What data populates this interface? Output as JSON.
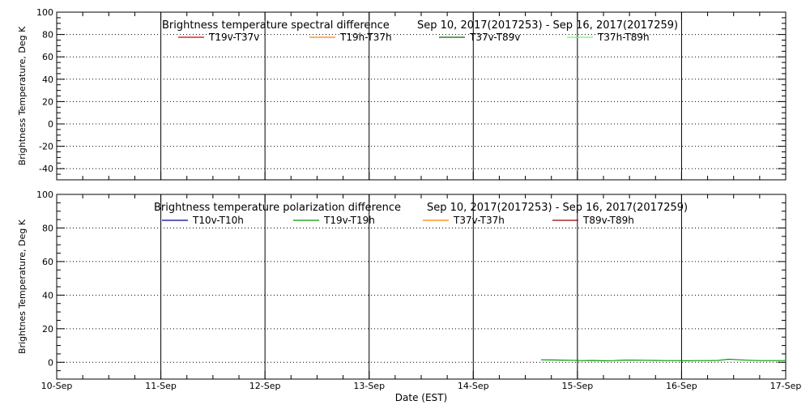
{
  "chart_data": [
    {
      "type": "line",
      "title": "Brightness temperature spectral difference",
      "date_range": "Sep 10, 2017(2017253) - Sep 16, 2017(2017259)",
      "ylabel": "Brightness Temperature, Deg K",
      "ylim": [
        -50,
        100
      ],
      "yticks": [
        -40,
        -20,
        0,
        20,
        40,
        60,
        80,
        100
      ],
      "xlim": [
        0,
        7
      ],
      "grid": true,
      "legend_position": "top",
      "series": [
        {
          "name": "T19v-T37v",
          "color": "#cc0000",
          "values": []
        },
        {
          "name": "T19h-T37h",
          "color": "#ff8000",
          "values": []
        },
        {
          "name": "T37v-T89v",
          "color": "#006600",
          "values": []
        },
        {
          "name": "T37h-T89h",
          "color": "#66ff66",
          "values": []
        }
      ]
    },
    {
      "type": "line",
      "title": "Brightness temperature polarization difference",
      "date_range": "Sep 10, 2017(2017253) - Sep 16, 2017(2017259)",
      "ylabel": "Brightnes Temperature, Deg K",
      "xlabel": "Date (EST)",
      "ylim": [
        -10,
        100
      ],
      "yticks": [
        0,
        20,
        40,
        60,
        80,
        100
      ],
      "xlim": [
        0,
        7
      ],
      "grid": true,
      "legend_position": "top",
      "series": [
        {
          "name": "T10v-T10h",
          "color": "#000099",
          "values": []
        },
        {
          "name": "T19v-T19h",
          "color": "#009900",
          "x": [
            4.65,
            4.75,
            4.85,
            4.95,
            5.05,
            5.15,
            5.25,
            5.35,
            5.45,
            5.55,
            5.65,
            5.75,
            5.85,
            5.95,
            6.05,
            6.15,
            6.25,
            6.35,
            6.45,
            6.55,
            6.65,
            6.75,
            6.85,
            7.0
          ],
          "values": [
            1.5,
            1.4,
            1.3,
            1.2,
            1.0,
            1.1,
            0.9,
            1.0,
            1.3,
            1.3,
            1.2,
            1.1,
            1.0,
            1.0,
            0.9,
            1.0,
            1.0,
            1.1,
            1.8,
            1.5,
            1.2,
            1.0,
            1.0,
            1.0
          ]
        },
        {
          "name": "T37v-T37h",
          "color": "#ff8000",
          "values": []
        },
        {
          "name": "T89v-T89h",
          "color": "#990000",
          "values": []
        }
      ]
    }
  ],
  "x_tick_labels": [
    "10-Sep",
    "11-Sep",
    "12-Sep",
    "13-Sep",
    "14-Sep",
    "15-Sep",
    "16-Sep",
    "17-Sep"
  ]
}
